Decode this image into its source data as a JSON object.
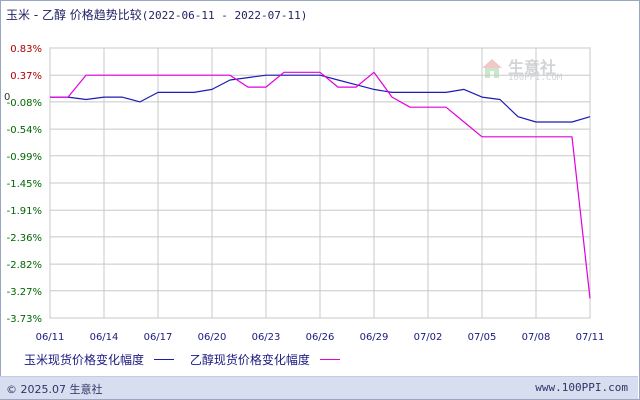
{
  "title": {
    "main": "玉米 - 乙醇 价格趋势比较",
    "range": "(2022-06-11 - 2022-07-11)"
  },
  "watermark": {
    "name": "生意社",
    "url": "100PPI.COM"
  },
  "footer": {
    "left": "© 2025.07 生意社",
    "right": "www.100PPI.com"
  },
  "colors": {
    "series_corn": "#1c1cb4",
    "series_ethanol": "#e000e0",
    "grid": "#c8c8c8",
    "axis_label": "#1a1a80",
    "positive": "#b00000",
    "negative": "#006600"
  },
  "chart_data": {
    "type": "line",
    "title": "玉米 - 乙醇 价格趋势比较",
    "x": [
      "06/11",
      "06/12",
      "06/13",
      "06/14",
      "06/15",
      "06/16",
      "06/17",
      "06/18",
      "06/19",
      "06/20",
      "06/21",
      "06/22",
      "06/23",
      "06/24",
      "06/25",
      "06/26",
      "06/27",
      "06/28",
      "06/29",
      "06/30",
      "07/01",
      "07/02",
      "07/03",
      "07/04",
      "07/05",
      "07/06",
      "07/07",
      "07/08",
      "07/09",
      "07/10",
      "07/11"
    ],
    "xticks": [
      "06/11",
      "06/14",
      "06/17",
      "06/20",
      "06/23",
      "06/26",
      "06/29",
      "07/02",
      "07/05",
      "07/08",
      "07/11"
    ],
    "yticks": [
      0.83,
      0.37,
      -0.08,
      -0.54,
      -0.99,
      -1.45,
      -1.91,
      -2.36,
      -2.82,
      -3.27,
      -3.73
    ],
    "ytick_labels": [
      "0.83%",
      "0.37%",
      "-0.08%",
      "-0.54%",
      "-0.99%",
      "-1.45%",
      "-1.91%",
      "-2.36%",
      "-2.82%",
      "-3.27%",
      "-3.73%"
    ],
    "zero_label": "0",
    "ylim": [
      -3.73,
      0.83
    ],
    "grid": true,
    "legend_position": "bottom",
    "series": [
      {
        "name": "玉米现货价格变化幅度",
        "color": "#1c1cb4",
        "values": [
          0,
          0,
          -0.04,
          0,
          0,
          -0.08,
          0.08,
          0.08,
          0.08,
          0.13,
          0.29,
          0.33,
          0.37,
          0.37,
          0.37,
          0.37,
          0.29,
          0.21,
          0.13,
          0.08,
          0.08,
          0.08,
          0.08,
          0.13,
          0,
          -0.04,
          -0.33,
          -0.42,
          -0.42,
          -0.42,
          -0.33
        ]
      },
      {
        "name": "乙醇现货价格变化幅度",
        "color": "#e000e0",
        "values": [
          0,
          0,
          0.37,
          0.37,
          0.37,
          0.37,
          0.37,
          0.37,
          0.37,
          0.37,
          0.37,
          0.17,
          0.17,
          0.42,
          0.42,
          0.42,
          0.17,
          0.17,
          0.42,
          0,
          -0.17,
          -0.17,
          -0.17,
          -0.42,
          -0.67,
          -0.67,
          -0.67,
          -0.67,
          -0.67,
          -0.67,
          -3.4
        ]
      }
    ]
  }
}
